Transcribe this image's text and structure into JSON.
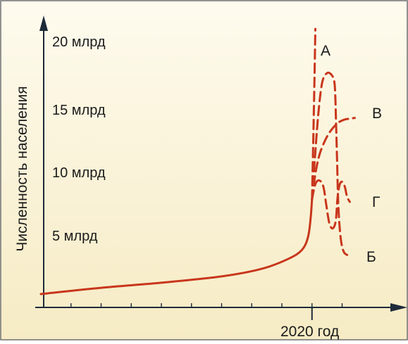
{
  "colors": {
    "background_top": "#fefbee",
    "background_bottom": "#f6ebc4",
    "curve": "#c8361c",
    "axis": "#1d2a3a",
    "border": "#6e6e6e",
    "text": "#1b1b1b"
  },
  "chart_data": {
    "type": "line",
    "ylabel": "Численность населения",
    "xlabel": "",
    "x_tick_label": "2020 год",
    "y_ticks": [
      {
        "value": 5,
        "label": "5 млрд"
      },
      {
        "value": 10,
        "label": "10 млрд"
      },
      {
        "value": 15,
        "label": "15 млрд"
      },
      {
        "value": 20,
        "label": "20 млрд"
      }
    ],
    "ylim": [
      0,
      22
    ],
    "x_domain": [
      0,
      100
    ],
    "x_minor_ticks": [
      9,
      18,
      27,
      36,
      45,
      54,
      63,
      72,
      81,
      90
    ],
    "x_marker": 81,
    "series": [
      {
        "style": "solid",
        "points": [
          [
            0,
            0.5
          ],
          [
            18,
            1.0
          ],
          [
            36,
            1.4
          ],
          [
            54,
            1.9
          ],
          [
            66,
            2.5
          ],
          [
            74,
            3.3
          ],
          [
            78,
            4.0
          ],
          [
            79.8,
            5.0
          ],
          [
            80.6,
            6.5
          ],
          [
            81,
            8.0
          ]
        ]
      },
      {
        "name": "А",
        "style": "dashed",
        "points": [
          [
            81,
            8.0
          ],
          [
            81.4,
            13
          ],
          [
            81.7,
            17
          ],
          [
            82,
            21.5
          ]
        ]
      },
      {
        "name": "Б",
        "style": "dashed",
        "points": [
          [
            81,
            8.0
          ],
          [
            81.8,
            11
          ],
          [
            82.8,
            14.5
          ],
          [
            84,
            17.2
          ],
          [
            85.5,
            18.0
          ],
          [
            87,
            17.8
          ],
          [
            87.8,
            17
          ],
          [
            88.2,
            14
          ],
          [
            88.5,
            11
          ],
          [
            88.8,
            8
          ],
          [
            89.2,
            6
          ],
          [
            89.8,
            4.5
          ],
          [
            90.6,
            3.8
          ],
          [
            91.5,
            3.6
          ]
        ]
      },
      {
        "name": "В",
        "style": "dashed",
        "points": [
          [
            81,
            8.0
          ],
          [
            82,
            10
          ],
          [
            83.2,
            11.5
          ],
          [
            84.8,
            12.6
          ],
          [
            86.5,
            13.4
          ],
          [
            88.5,
            14.0
          ],
          [
            90.5,
            14.3
          ],
          [
            92.5,
            14.4
          ],
          [
            93.8,
            14.45
          ]
        ]
      },
      {
        "name": "Г",
        "style": "dashed",
        "points": [
          [
            81,
            8.0
          ],
          [
            82,
            9.2
          ],
          [
            83.2,
            9.5
          ],
          [
            84.4,
            9
          ],
          [
            85.3,
            7.5
          ],
          [
            86.2,
            6.1
          ],
          [
            87.2,
            5.7
          ],
          [
            88.1,
            6.3
          ],
          [
            88.6,
            8
          ],
          [
            89.2,
            9.1
          ],
          [
            90,
            9.4
          ],
          [
            90.8,
            9
          ],
          [
            91.5,
            8.2
          ],
          [
            92.3,
            7.8
          ]
        ]
      }
    ]
  }
}
